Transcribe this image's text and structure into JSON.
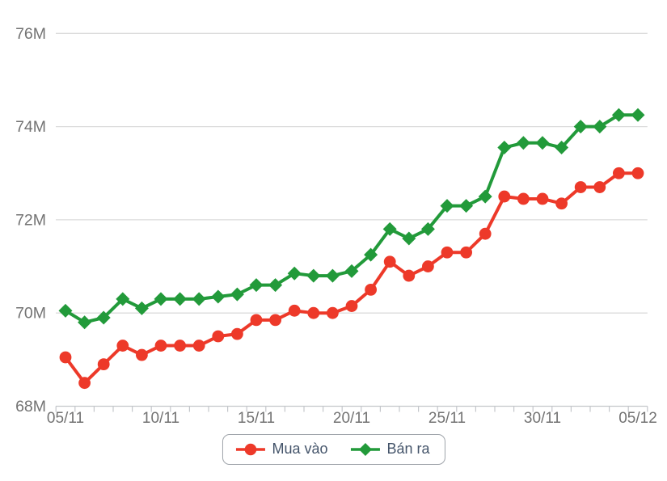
{
  "chart_data": {
    "type": "line",
    "title": "",
    "xlabel": "",
    "ylabel": "",
    "unit": "M",
    "x": [
      "05/11",
      "06/11",
      "07/11",
      "08/11",
      "09/11",
      "10/11",
      "11/11",
      "12/11",
      "13/11",
      "14/11",
      "15/11",
      "16/11",
      "17/11",
      "18/11",
      "19/11",
      "20/11",
      "21/11",
      "22/11",
      "23/11",
      "24/11",
      "25/11",
      "26/11",
      "27/11",
      "28/11",
      "29/11",
      "30/11",
      "01/12",
      "02/12",
      "03/12",
      "04/12",
      "05/12"
    ],
    "x_tick_labels": [
      "05/11",
      "10/11",
      "15/11",
      "20/11",
      "25/11",
      "30/11",
      "05/12"
    ],
    "x_tick_every": 5,
    "y_ticks": [
      68,
      70,
      72,
      74,
      76
    ],
    "y_tick_labels": [
      "68M",
      "70M",
      "72M",
      "74M",
      "76M"
    ],
    "ylim": [
      68,
      76.7
    ],
    "grid": "horizontal",
    "legend_position": "bottom",
    "series": [
      {
        "name": "Mua vào",
        "color": "#ed3929",
        "marker": "circle",
        "values": [
          69.05,
          68.5,
          68.9,
          69.3,
          69.1,
          69.3,
          69.3,
          69.3,
          69.5,
          69.55,
          69.85,
          69.85,
          70.05,
          70.0,
          70.0,
          70.15,
          70.5,
          71.1,
          70.8,
          71.0,
          71.3,
          71.3,
          71.7,
          72.5,
          72.45,
          72.45,
          72.35,
          72.7,
          72.7,
          73.0,
          73.0
        ]
      },
      {
        "name": "Bán ra",
        "color": "#229a3a",
        "marker": "diamond",
        "values": [
          70.05,
          69.8,
          69.9,
          70.3,
          70.1,
          70.3,
          70.3,
          70.3,
          70.35,
          70.4,
          70.6,
          70.6,
          70.85,
          70.8,
          70.8,
          70.9,
          71.25,
          71.8,
          71.6,
          71.8,
          72.3,
          72.3,
          72.5,
          73.55,
          73.65,
          73.65,
          73.55,
          74.0,
          74.0,
          74.25,
          74.25
        ]
      }
    ]
  },
  "colors": {
    "background": "#ffffff",
    "axis_text": "#737373",
    "grid_line": "#dcdcdc",
    "axis_line": "#c4c7cb",
    "tick_mark": "#c4c7cb",
    "legend_text": "#44546a",
    "legend_border": "#9fa4aa"
  }
}
